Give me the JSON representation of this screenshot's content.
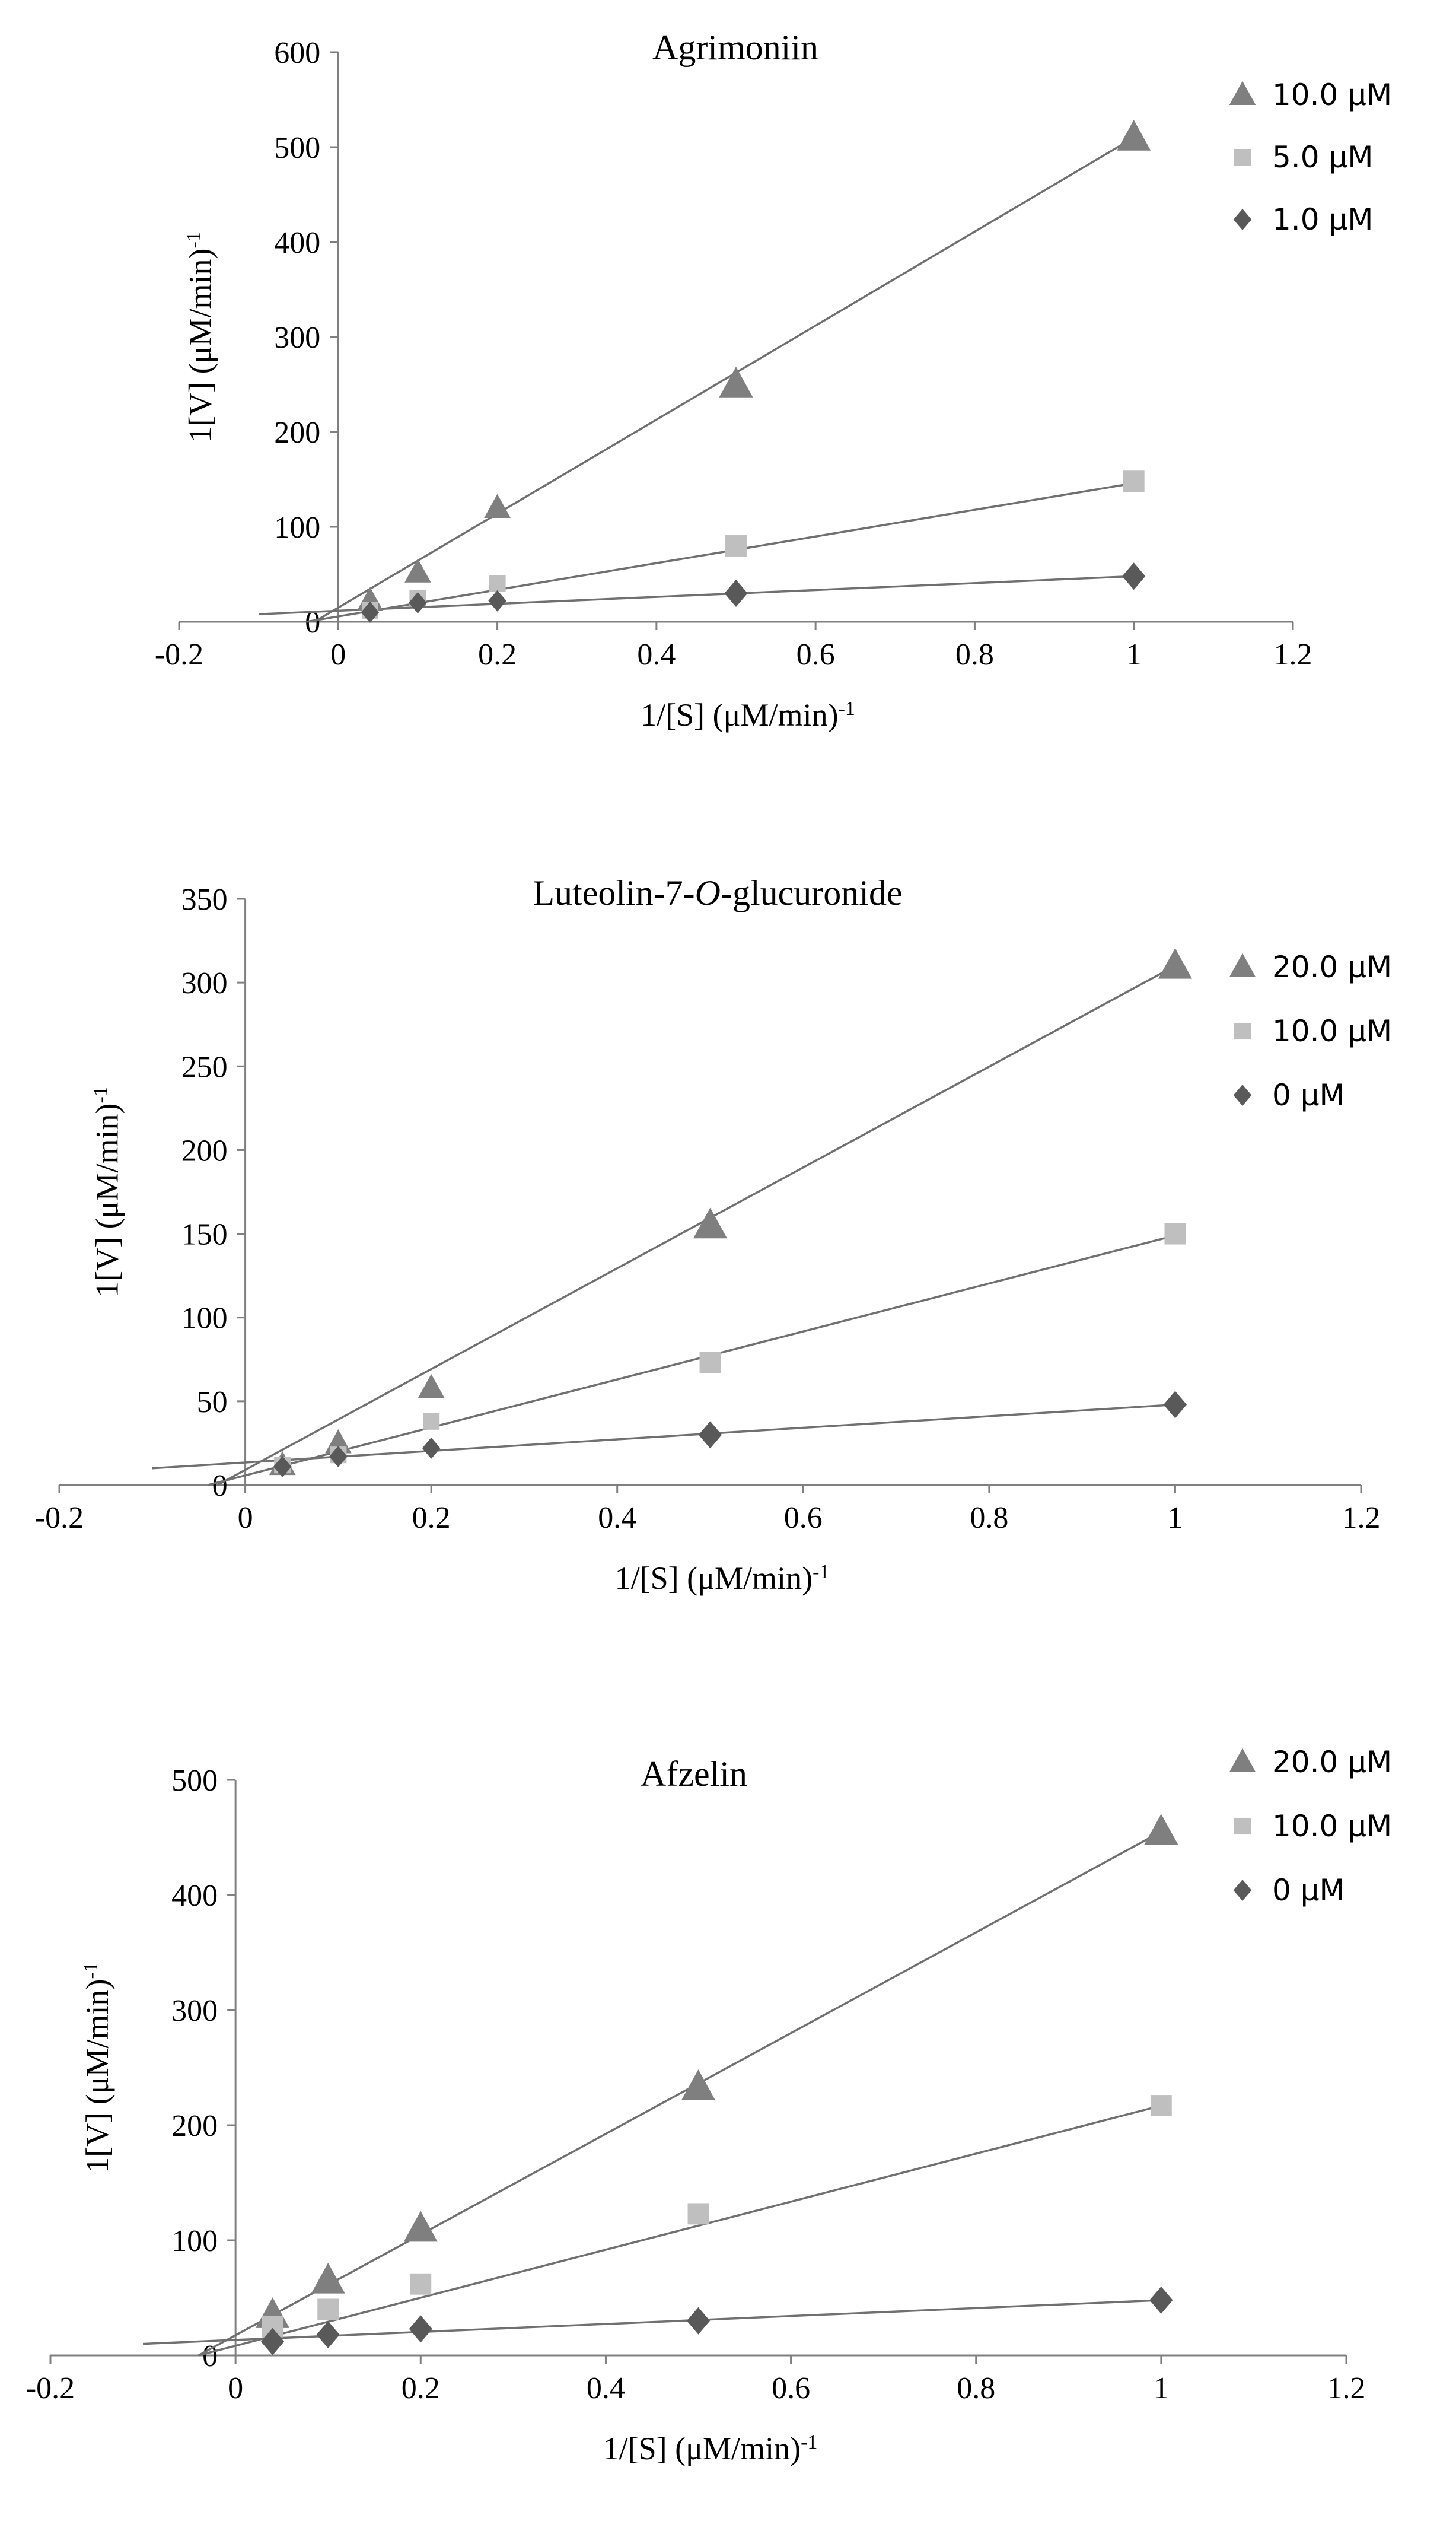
{
  "chart_data": [
    {
      "type": "scatter",
      "title": "Agrimoniin",
      "title_italic_part": "",
      "title_suffix": "",
      "xlabel": "1/[S] (μM/min)",
      "xlabel_sup": "-1",
      "ylabel": "1[V] (μM/min)",
      "ylabel_sup": "-1",
      "xlim": [
        -0.2,
        1.2
      ],
      "ylim": [
        0,
        600
      ],
      "xticks": [
        -0.2,
        0,
        0.2,
        0.4,
        0.6,
        0.8,
        1,
        1.2
      ],
      "xtick_labels": [
        "-0.2",
        "0",
        "0.2",
        "0.4",
        "0.6",
        "0.8",
        "1",
        "1.2"
      ],
      "yticks": [
        0,
        100,
        200,
        300,
        400,
        500,
        600
      ],
      "ytick_labels": [
        "0",
        "100",
        "200",
        "300",
        "400",
        "500",
        "600"
      ],
      "grid": false,
      "legend_position": "top-right",
      "series": [
        {
          "name": "10.0 μM",
          "marker": "triangle",
          "color": "#7f7f7f",
          "x": [
            0.04,
            0.1,
            0.2,
            0.5,
            1
          ],
          "y": [
            22,
            52,
            120,
            250,
            510
          ],
          "fit": {
            "x0": -0.03,
            "y0": 0,
            "x1": 1.0,
            "y1": 510
          }
        },
        {
          "name": "5.0 μM",
          "marker": "square",
          "color": "#bfbfbf",
          "x": [
            0.04,
            0.1,
            0.2,
            0.5,
            1
          ],
          "y": [
            12,
            25,
            40,
            80,
            148
          ],
          "fit": {
            "x0": -0.04,
            "y0": 0,
            "x1": 1.0,
            "y1": 146
          }
        },
        {
          "name": "1.0 μM",
          "marker": "diamond",
          "color": "#595959",
          "x": [
            0.04,
            0.1,
            0.2,
            0.5,
            1
          ],
          "y": [
            10,
            20,
            22,
            30,
            48
          ],
          "fit": {
            "x0": -0.1,
            "y0": 8,
            "x1": 1.0,
            "y1": 48
          }
        }
      ]
    },
    {
      "type": "scatter",
      "title": "Luteolin-7-",
      "title_italic_part": "O",
      "title_suffix": "-glucuronide",
      "xlabel": "1/[S] (μM/min)",
      "xlabel_sup": "-1",
      "ylabel": "1[V] (μM/min)",
      "ylabel_sup": "-1",
      "xlim": [
        -0.2,
        1.2
      ],
      "ylim": [
        0,
        350
      ],
      "xticks": [
        -0.2,
        0,
        0.2,
        0.4,
        0.6,
        0.8,
        1,
        1.2
      ],
      "xtick_labels": [
        "-0.2",
        "0",
        "0.2",
        "0.4",
        "0.6",
        "0.8",
        "1",
        "1.2"
      ],
      "yticks": [
        0,
        50,
        100,
        150,
        200,
        250,
        300,
        350
      ],
      "ytick_labels": [
        "0",
        "50",
        "100",
        "150",
        "200",
        "250",
        "300",
        "350"
      ],
      "grid": false,
      "legend_position": "top-right",
      "series": [
        {
          "name": "20.0 μM",
          "marker": "triangle",
          "color": "#7f7f7f",
          "x": [
            0.04,
            0.1,
            0.2,
            0.5,
            1
          ],
          "y": [
            12,
            25,
            58,
            155,
            310
          ],
          "fit": {
            "x0": -0.03,
            "y0": 0,
            "x1": 1.0,
            "y1": 310
          }
        },
        {
          "name": "10.0 μM",
          "marker": "square",
          "color": "#bfbfbf",
          "x": [
            0.04,
            0.1,
            0.2,
            0.5,
            1
          ],
          "y": [
            12,
            18,
            38,
            73,
            150
          ],
          "fit": {
            "x0": -0.04,
            "y0": 0,
            "x1": 1.0,
            "y1": 149
          }
        },
        {
          "name": "0 μM",
          "marker": "diamond",
          "color": "#595959",
          "x": [
            0.04,
            0.1,
            0.2,
            0.5,
            1
          ],
          "y": [
            11,
            17,
            22,
            30,
            48
          ],
          "fit": {
            "x0": -0.1,
            "y0": 10,
            "x1": 1.0,
            "y1": 48
          }
        }
      ]
    },
    {
      "type": "scatter",
      "title": "Afzelin",
      "title_italic_part": "",
      "title_suffix": "",
      "xlabel": "1/[S] (μM/min)",
      "xlabel_sup": "-1",
      "ylabel": "1[V] (μM/min)",
      "ylabel_sup": "-1",
      "xlim": [
        -0.2,
        1.2
      ],
      "ylim": [
        0,
        500
      ],
      "xticks": [
        -0.2,
        0,
        0.2,
        0.4,
        0.6,
        0.8,
        1,
        1.2
      ],
      "xtick_labels": [
        "-0.2",
        "0",
        "0.2",
        "0.4",
        "0.6",
        "0.8",
        "1",
        "1.2"
      ],
      "yticks": [
        0,
        100,
        200,
        300,
        400,
        500
      ],
      "ytick_labels": [
        "0",
        "100",
        "200",
        "300",
        "400",
        "500"
      ],
      "grid": false,
      "legend_position": "top-right",
      "series": [
        {
          "name": "20.0 μM",
          "marker": "triangle",
          "color": "#7f7f7f",
          "x": [
            0.04,
            0.1,
            0.2,
            0.5,
            1
          ],
          "y": [
            35,
            65,
            110,
            233,
            455
          ],
          "fit": {
            "x0": -0.04,
            "y0": 0,
            "x1": 1.0,
            "y1": 455
          }
        },
        {
          "name": "10.0 μM",
          "marker": "square",
          "color": "#bfbfbf",
          "x": [
            0.04,
            0.1,
            0.2,
            0.5,
            1
          ],
          "y": [
            25,
            40,
            62,
            123,
            217
          ],
          "fit": {
            "x0": -0.04,
            "y0": 0,
            "x1": 1.0,
            "y1": 217
          }
        },
        {
          "name": "0 μM",
          "marker": "diamond",
          "color": "#595959",
          "x": [
            0.04,
            0.1,
            0.2,
            0.5,
            1
          ],
          "y": [
            12,
            18,
            23,
            30,
            48
          ],
          "fit": {
            "x0": -0.1,
            "y0": 10,
            "x1": 1.0,
            "y1": 48
          }
        }
      ]
    }
  ]
}
